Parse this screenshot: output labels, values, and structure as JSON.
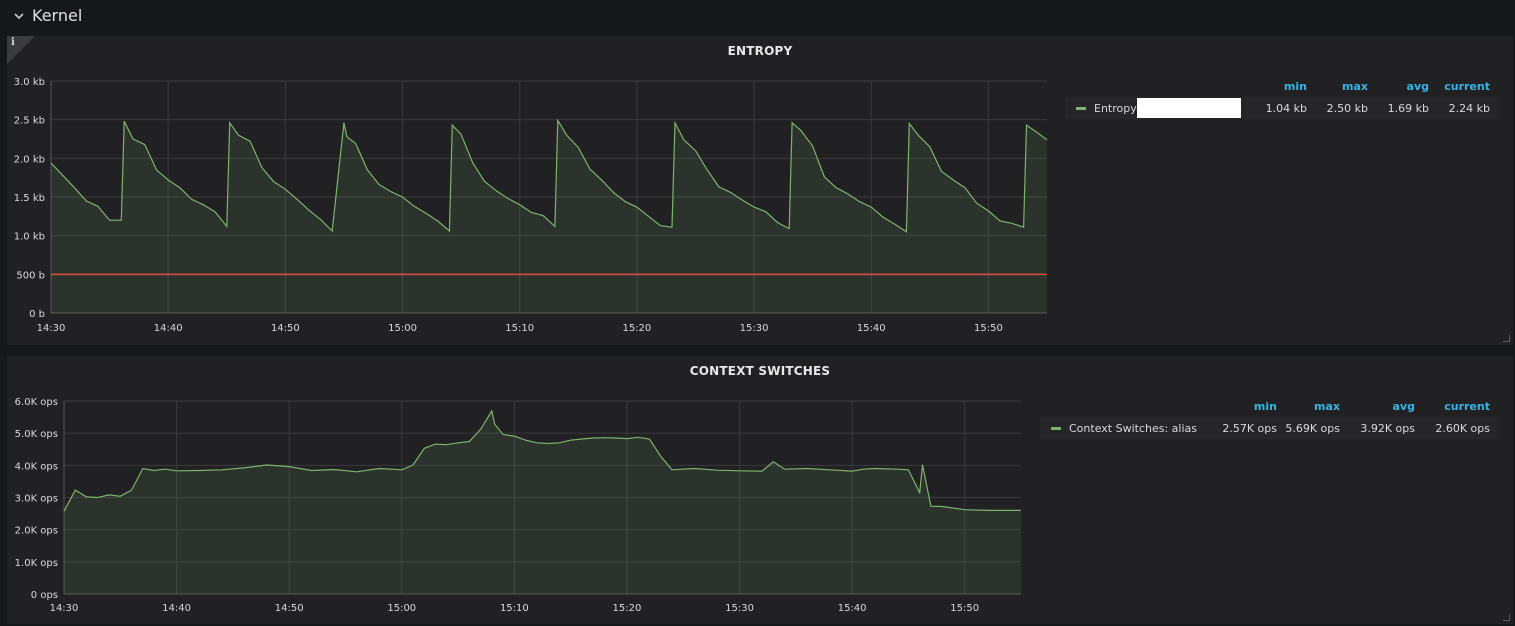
{
  "row": {
    "title": "Kernel",
    "chevron_icon": "chevron-down-icon"
  },
  "panels": [
    {
      "title": "ENTROPY",
      "legend": {
        "headers": [
          "min",
          "max",
          "avg",
          "current"
        ],
        "series_label": "Entropy:",
        "values": [
          "1.04 kb",
          "2.50 kb",
          "1.69 kb",
          "2.24 kb"
        ]
      }
    },
    {
      "title": "CONTEXT SWITCHES",
      "legend": {
        "headers": [
          "min",
          "max",
          "avg",
          "current"
        ],
        "series_label": "Context Switches: alias",
        "values": [
          "2.57K ops",
          "5.69K ops",
          "3.92K ops",
          "2.60K ops"
        ]
      }
    }
  ],
  "colors": {
    "series": "#7eb26d",
    "threshold": "#e24d42",
    "legend_header": "#33b5e5"
  },
  "chart_data": [
    {
      "type": "area",
      "title": "ENTROPY",
      "x_ticks": [
        "14:30",
        "14:40",
        "14:50",
        "15:00",
        "15:10",
        "15:20",
        "15:30",
        "15:40",
        "15:50"
      ],
      "y_ticks": [
        "0 b",
        "500 b",
        "1.0 kb",
        "1.5 kb",
        "2.0 kb",
        "2.5 kb",
        "3.0 kb"
      ],
      "xlim": [
        "14:30",
        "15:55"
      ],
      "ylim": [
        0,
        3000
      ],
      "grid": true,
      "threshold": 500,
      "series": [
        {
          "name": "Entropy:",
          "color": "#7eb26d",
          "x": [
            "14:30",
            "14:31",
            "14:32",
            "14:33",
            "14:34",
            "14:35",
            "14:36",
            "14:36",
            "14:37",
            "14:38",
            "14:39",
            "14:40",
            "14:41",
            "14:42",
            "14:43",
            "14:44",
            "14:45",
            "14:45",
            "14:46",
            "14:47",
            "14:48",
            "14:49",
            "14:50",
            "14:51",
            "14:52",
            "14:53",
            "14:54",
            "14:55",
            "14:55",
            "14:56",
            "14:57",
            "14:58",
            "14:59",
            "15:00",
            "15:01",
            "15:02",
            "15:03",
            "15:04",
            "15:04",
            "15:05",
            "15:06",
            "15:07",
            "15:08",
            "15:09",
            "15:10",
            "15:11",
            "15:12",
            "15:13",
            "15:13",
            "15:14",
            "15:15",
            "15:16",
            "15:17",
            "15:18",
            "15:19",
            "15:20",
            "15:21",
            "15:22",
            "15:23",
            "15:23",
            "15:24",
            "15:25",
            "15:26",
            "15:27",
            "15:28",
            "15:29",
            "15:30",
            "15:31",
            "15:32",
            "15:33",
            "15:33",
            "15:34",
            "15:35",
            "15:36",
            "15:37",
            "15:38",
            "15:39",
            "15:40",
            "15:41",
            "15:42",
            "15:43",
            "15:43",
            "15:44",
            "15:45",
            "15:46",
            "15:47",
            "15:48",
            "15:49",
            "15:50",
            "15:51",
            "15:52",
            "15:53",
            "15:53",
            "15:54",
            "15:55"
          ],
          "values": [
            1940,
            1780,
            1620,
            1450,
            1380,
            1200,
            1200,
            2480,
            2250,
            2180,
            1850,
            1720,
            1620,
            1470,
            1400,
            1310,
            1120,
            2460,
            2300,
            2220,
            1880,
            1700,
            1600,
            1470,
            1330,
            1210,
            1060,
            2460,
            2280,
            2190,
            1850,
            1660,
            1570,
            1500,
            1380,
            1290,
            1190,
            1060,
            2430,
            2310,
            1940,
            1700,
            1580,
            1480,
            1400,
            1300,
            1260,
            1120,
            2490,
            2300,
            2140,
            1860,
            1720,
            1560,
            1440,
            1370,
            1250,
            1130,
            1110,
            2460,
            2240,
            2100,
            1850,
            1630,
            1560,
            1460,
            1370,
            1310,
            1170,
            1090,
            2460,
            2360,
            2160,
            1760,
            1620,
            1540,
            1440,
            1370,
            1240,
            1150,
            1050,
            2450,
            2300,
            2150,
            1830,
            1720,
            1620,
            1420,
            1320,
            1190,
            1160,
            1110,
            2430,
            2350,
            2240
          ]
        }
      ]
    },
    {
      "type": "area",
      "title": "CONTEXT SWITCHES",
      "x_ticks": [
        "14:30",
        "14:40",
        "14:50",
        "15:00",
        "15:10",
        "15:20",
        "15:30",
        "15:40",
        "15:50"
      ],
      "y_ticks": [
        "0 ops",
        "1.0K ops",
        "2.0K ops",
        "3.0K ops",
        "4.0K ops",
        "5.0K ops",
        "6.0K ops"
      ],
      "xlim": [
        "14:30",
        "15:55"
      ],
      "ylim": [
        0,
        6000
      ],
      "grid": true,
      "series": [
        {
          "name": "Context Switches: alias",
          "color": "#7eb26d",
          "x": [
            "14:30",
            "14:31",
            "14:32",
            "14:33",
            "14:34",
            "14:35",
            "14:36",
            "14:37",
            "14:38",
            "14:39",
            "14:40",
            "14:42",
            "14:44",
            "14:46",
            "14:48",
            "14:50",
            "14:52",
            "14:54",
            "14:56",
            "14:58",
            "15:00",
            "15:01",
            "15:02",
            "15:03",
            "15:04",
            "15:05",
            "15:06",
            "15:07",
            "15:08",
            "15:08",
            "15:09",
            "15:10",
            "15:11",
            "15:12",
            "15:13",
            "15:14",
            "15:15",
            "15:16",
            "15:17",
            "15:18",
            "15:19",
            "15:20",
            "15:21",
            "15:22",
            "15:23",
            "15:24",
            "15:26",
            "15:28",
            "15:30",
            "15:32",
            "15:33",
            "15:34",
            "15:36",
            "15:38",
            "15:40",
            "15:41",
            "15:42",
            "15:44",
            "15:45",
            "15:46",
            "15:46",
            "15:47",
            "15:48",
            "15:50",
            "15:52",
            "15:55"
          ],
          "values": [
            2570,
            3230,
            3020,
            3000,
            3080,
            3040,
            3230,
            3900,
            3840,
            3880,
            3830,
            3840,
            3860,
            3920,
            4010,
            3960,
            3840,
            3870,
            3800,
            3900,
            3860,
            4010,
            4530,
            4660,
            4640,
            4700,
            4740,
            5120,
            5690,
            5280,
            4960,
            4910,
            4780,
            4700,
            4680,
            4700,
            4780,
            4820,
            4850,
            4860,
            4850,
            4830,
            4870,
            4820,
            4280,
            3860,
            3900,
            3850,
            3830,
            3820,
            4110,
            3880,
            3900,
            3860,
            3820,
            3880,
            3900,
            3880,
            3860,
            3150,
            4020,
            2730,
            2720,
            2620,
            2600,
            2600
          ]
        }
      ]
    }
  ]
}
